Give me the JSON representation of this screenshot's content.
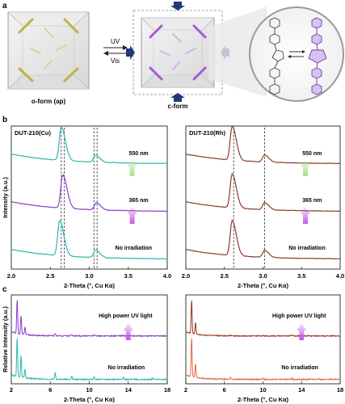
{
  "panel_letters": {
    "a": "a",
    "b": "b",
    "c": "c"
  },
  "panel_a": {
    "label_o_form": "o-form (ap)",
    "label_c_form": "c-form",
    "arrow_uv": "UV",
    "arrow_vis": "Vis"
  },
  "colors": {
    "teal": "#2bb7ad",
    "purple": "#8a3cc8",
    "brown": "#8b3a2a",
    "dark_red": "#9c3322",
    "orange_red": "#e06a3f",
    "press_arrow": "#1f3a78",
    "uv_arrow": "#c25ae6",
    "vis_arrow": "#a6e08a"
  },
  "chart_data": [
    {
      "type": "line",
      "title": "DUT-210(Cu)",
      "xlabel": "2-Theta (°, Cu Kα)",
      "ylabel": "Intensity (a.u.)",
      "xlim": [
        2.0,
        4.0
      ],
      "xticks": [
        "2.0",
        "2.5",
        "3.0",
        "3.5",
        "4.0"
      ],
      "dashed_lines_x": [
        2.64,
        2.68,
        3.06,
        3.1
      ],
      "series": [
        {
          "name": "No irradiation",
          "color": "#2bb7ad",
          "offset": 0,
          "peaks": [
            [
              2.62,
              1.0
            ],
            [
              3.08,
              0.22
            ]
          ]
        },
        {
          "name": "365 nm",
          "color": "#8a3cc8",
          "offset": 1,
          "peaks": [
            [
              2.66,
              0.95
            ],
            [
              3.09,
              0.2
            ]
          ]
        },
        {
          "name": "550 nm",
          "color": "#2bb7ad",
          "offset": 2,
          "peaks": [
            [
              2.64,
              0.95
            ],
            [
              3.08,
              0.2
            ]
          ]
        }
      ],
      "annotations": [
        "550 nm",
        "365 nm",
        "No irradiation"
      ]
    },
    {
      "type": "line",
      "title": "DUT-210(Rh)",
      "xlabel": "2-Theta (°, Cu Kα)",
      "ylabel": "",
      "xlim": [
        2.0,
        4.0
      ],
      "xticks": [
        "2.0",
        "2.5",
        "3.0",
        "3.5",
        "4.0"
      ],
      "dashed_lines_x": [
        2.62,
        3.02
      ],
      "series": [
        {
          "name": "No irradiation",
          "color": "#8b3a2a",
          "offset": 0,
          "peaks": [
            [
              2.6,
              1.0
            ],
            [
              3.02,
              0.2
            ]
          ]
        },
        {
          "name": "365 nm",
          "color": "#8b3a2a",
          "offset": 1,
          "peaks": [
            [
              2.6,
              0.97
            ],
            [
              3.02,
              0.2
            ]
          ]
        },
        {
          "name": "550 nm",
          "color": "#8b3a2a",
          "offset": 2,
          "peaks": [
            [
              2.6,
              0.97
            ],
            [
              3.02,
              0.2
            ]
          ]
        }
      ],
      "annotations": [
        "550 nm",
        "365 nm",
        "No irradiation"
      ]
    },
    {
      "type": "line",
      "xlabel": "2-Theta (°, Cu Kα)",
      "ylabel": "Relative Intensity (a.u.)",
      "xlim": [
        2,
        18
      ],
      "xticks": [
        "2",
        "6",
        "10",
        "14",
        "18"
      ],
      "series": [
        {
          "name": "No irradiation",
          "color": "#2bb7ad",
          "offset": 0
        },
        {
          "name": "High power UV light",
          "color": "#8a3cc8",
          "offset": 1
        }
      ],
      "annotations": [
        "High power UV light",
        "No irradiation"
      ]
    },
    {
      "type": "line",
      "xlabel": "2-Theta (°, Cu Kα)",
      "ylabel": "",
      "xlim": [
        2,
        18
      ],
      "xticks": [
        "2",
        "6",
        "10",
        "14",
        "18"
      ],
      "series": [
        {
          "name": "No irradiation",
          "color": "#e06a3f",
          "offset": 0
        },
        {
          "name": "High power UV light",
          "color": "#9c3322",
          "offset": 1
        }
      ],
      "annotations": [
        "High power UV light",
        "No irradiation"
      ]
    }
  ]
}
